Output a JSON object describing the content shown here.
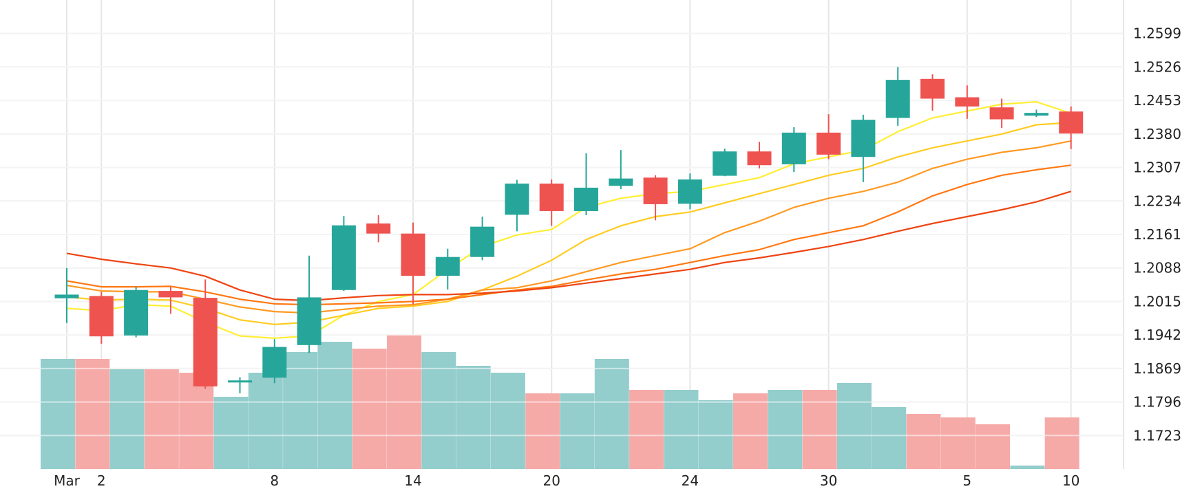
{
  "chart_data": {
    "type": "candlestick",
    "title": "",
    "xlabel": "",
    "ylabel": "",
    "x_tick_labels": [
      {
        "index": 0,
        "label": "Mar"
      },
      {
        "index": 1,
        "label": "2"
      },
      {
        "index": 6,
        "label": "8"
      },
      {
        "index": 10,
        "label": "14"
      },
      {
        "index": 14,
        "label": "20"
      },
      {
        "index": 18,
        "label": "24"
      },
      {
        "index": 22,
        "label": "30"
      },
      {
        "index": 26,
        "label": "5"
      },
      {
        "index": 29,
        "label": "10"
      }
    ],
    "y_tick_labels": [
      "1.2599",
      "1.2526",
      "1.2453",
      "1.2380",
      "1.2307",
      "1.2234",
      "1.2161",
      "1.2088",
      "1.2015",
      "1.1942",
      "1.1869",
      "1.1796",
      "1.1723"
    ],
    "ylim": [
      1.165,
      1.2672
    ],
    "grid": true,
    "colors": {
      "up": "#26a69a",
      "down": "#ef5350",
      "volume_up": "#93cdcc",
      "volume_down": "#f5aaa8",
      "grid": "#e6e6e6",
      "ma_colors": [
        "#ffee33",
        "#ffcc22",
        "#ff9922",
        "#ff7711",
        "#ee4411"
      ]
    },
    "candles": [
      {
        "open": 1.2022,
        "high": 1.2088,
        "low": 1.1968,
        "close": 1.203
      },
      {
        "open": 1.2027,
        "high": 1.2036,
        "low": 1.1923,
        "close": 1.1939
      },
      {
        "open": 1.1941,
        "high": 1.2047,
        "low": 1.1937,
        "close": 1.204
      },
      {
        "open": 1.2038,
        "high": 1.2047,
        "low": 1.1988,
        "close": 1.2024
      },
      {
        "open": 1.2023,
        "high": 1.2063,
        "low": 1.1825,
        "close": 1.183
      },
      {
        "open": 1.184,
        "high": 1.185,
        "low": 1.1815,
        "close": 1.1843
      },
      {
        "open": 1.1849,
        "high": 1.1933,
        "low": 1.1837,
        "close": 1.1916
      },
      {
        "open": 1.192,
        "high": 1.2115,
        "low": 1.1903,
        "close": 1.2024
      },
      {
        "open": 1.204,
        "high": 1.2201,
        "low": 1.2038,
        "close": 1.2181
      },
      {
        "open": 1.2185,
        "high": 1.2203,
        "low": 1.2144,
        "close": 1.2163
      },
      {
        "open": 1.2163,
        "high": 1.2187,
        "low": 1.2009,
        "close": 1.2071
      },
      {
        "open": 1.2071,
        "high": 1.213,
        "low": 1.2041,
        "close": 1.2112
      },
      {
        "open": 1.2112,
        "high": 1.22,
        "low": 1.2105,
        "close": 1.2178
      },
      {
        "open": 1.2204,
        "high": 1.228,
        "low": 1.2168,
        "close": 1.2272
      },
      {
        "open": 1.2272,
        "high": 1.2281,
        "low": 1.218,
        "close": 1.2212
      },
      {
        "open": 1.2212,
        "high": 1.2338,
        "low": 1.2203,
        "close": 1.2263
      },
      {
        "open": 1.2267,
        "high": 1.2345,
        "low": 1.226,
        "close": 1.2283
      },
      {
        "open": 1.2285,
        "high": 1.229,
        "low": 1.2192,
        "close": 1.2227
      },
      {
        "open": 1.2228,
        "high": 1.2294,
        "low": 1.2216,
        "close": 1.2281
      },
      {
        "open": 1.2289,
        "high": 1.2348,
        "low": 1.2288,
        "close": 1.2342
      },
      {
        "open": 1.2342,
        "high": 1.2363,
        "low": 1.2305,
        "close": 1.2312
      },
      {
        "open": 1.2314,
        "high": 1.2395,
        "low": 1.2297,
        "close": 1.2383
      },
      {
        "open": 1.2383,
        "high": 1.2423,
        "low": 1.2325,
        "close": 1.2335
      },
      {
        "open": 1.233,
        "high": 1.2422,
        "low": 1.2275,
        "close": 1.2411
      },
      {
        "open": 1.2415,
        "high": 1.2526,
        "low": 1.2398,
        "close": 1.2498
      },
      {
        "open": 1.25,
        "high": 1.251,
        "low": 1.2431,
        "close": 1.2457
      },
      {
        "open": 1.246,
        "high": 1.2486,
        "low": 1.2413,
        "close": 1.244
      },
      {
        "open": 1.2438,
        "high": 1.2457,
        "low": 1.2393,
        "close": 1.2412
      },
      {
        "open": 1.242,
        "high": 1.2433,
        "low": 1.2417,
        "close": 1.2426
      },
      {
        "open": 1.2429,
        "high": 1.244,
        "low": 1.2347,
        "close": 1.2381
      }
    ],
    "volume": [
      32,
      32,
      29,
      29,
      28,
      21,
      28,
      34,
      37,
      35,
      39,
      34,
      30,
      28,
      22,
      22,
      32,
      23,
      23,
      20,
      22,
      23,
      23,
      25,
      18,
      16,
      15,
      13,
      1,
      15
    ],
    "moving_averages": [
      [
        1.2,
        1.1995,
        1.2008,
        1.2005,
        1.197,
        1.194,
        1.1935,
        1.194,
        1.1985,
        1.2015,
        1.203,
        1.2085,
        1.2135,
        1.216,
        1.2172,
        1.222,
        1.224,
        1.225,
        1.2255,
        1.227,
        1.2285,
        1.2315,
        1.233,
        1.2345,
        1.2385,
        1.2415,
        1.243,
        1.2445,
        1.245,
        1.2425
      ],
      [
        1.2025,
        1.2018,
        1.202,
        1.2018,
        1.2,
        1.1975,
        1.1965,
        1.197,
        1.1985,
        1.2,
        1.2005,
        1.2015,
        1.204,
        1.207,
        1.2105,
        1.215,
        1.218,
        1.22,
        1.221,
        1.223,
        1.225,
        1.227,
        1.229,
        1.2305,
        1.233,
        1.235,
        1.2365,
        1.238,
        1.24,
        1.2405
      ],
      [
        1.205,
        1.2038,
        1.2036,
        1.2036,
        1.202,
        1.2003,
        1.1993,
        1.199,
        1.1998,
        1.2005,
        1.2008,
        1.202,
        1.204,
        1.2045,
        1.206,
        1.208,
        1.21,
        1.2115,
        1.213,
        1.2165,
        1.219,
        1.222,
        1.224,
        1.2255,
        1.2275,
        1.2305,
        1.2325,
        1.234,
        1.235,
        1.2365
      ],
      [
        1.206,
        1.2047,
        1.2047,
        1.2048,
        1.2036,
        1.202,
        1.201,
        1.2008,
        1.201,
        1.2012,
        1.2015,
        1.202,
        1.203,
        1.204,
        1.2048,
        1.2062,
        1.2075,
        1.2085,
        1.21,
        1.2115,
        1.2128,
        1.215,
        1.2165,
        1.218,
        1.221,
        1.2245,
        1.227,
        1.229,
        1.2302,
        1.2312
      ],
      [
        1.212,
        1.2107,
        1.2097,
        1.2088,
        1.207,
        1.204,
        1.202,
        1.2017,
        1.2023,
        1.2028,
        1.203,
        1.203,
        1.2033,
        1.2038,
        1.2045,
        1.2055,
        1.2065,
        1.2075,
        1.2085,
        1.21,
        1.211,
        1.2122,
        1.2135,
        1.215,
        1.2168,
        1.2185,
        1.22,
        1.2215,
        1.2232,
        1.2255
      ]
    ]
  }
}
